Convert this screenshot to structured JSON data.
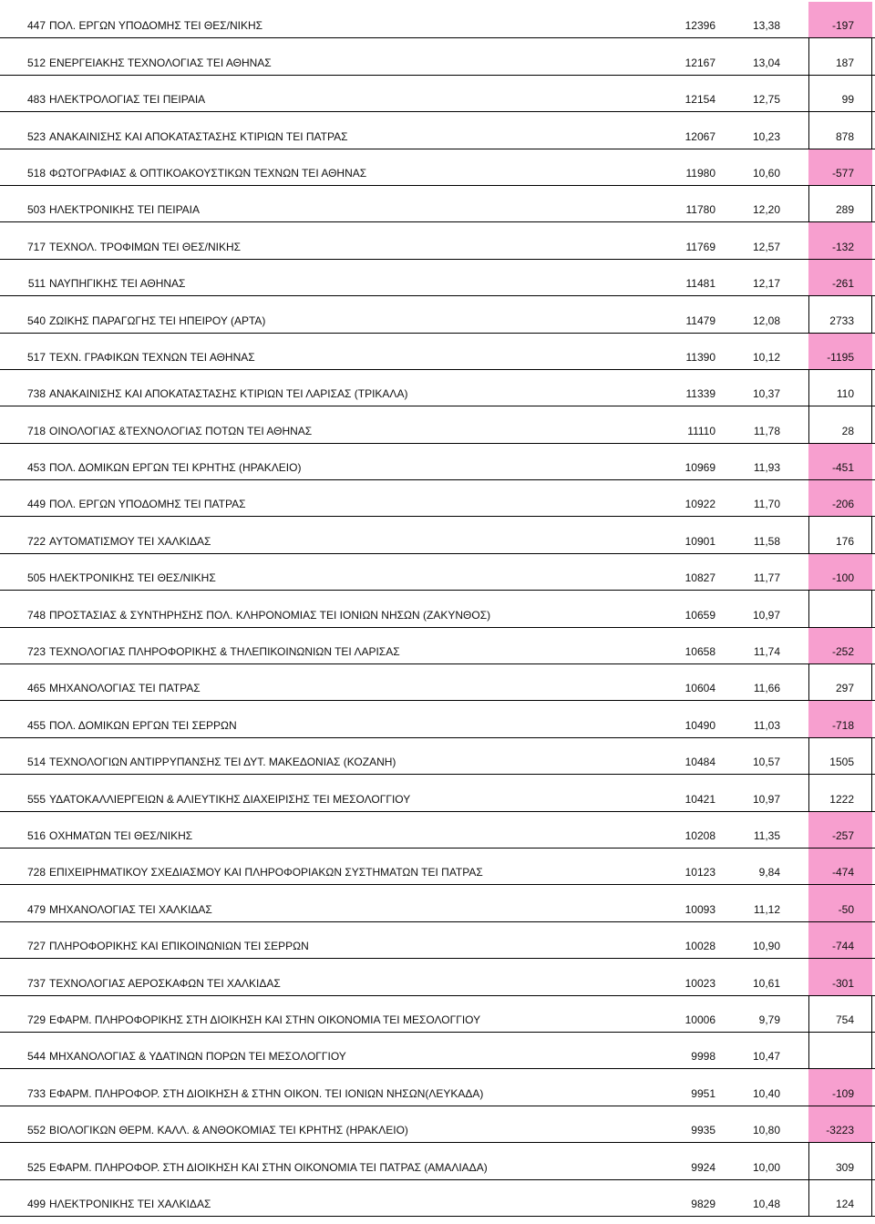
{
  "rows": [
    {
      "code": "447",
      "name": "ΠΟΛ.  ΕΡΓΩΝ ΥΠΟΔΟΜΗΣ  ΤΕΙ ΘΕΣ/ΝΙΚΗΣ",
      "score": "12396",
      "avg": "13,38",
      "diff": "-197",
      "highlight": true
    },
    {
      "code": "512",
      "name": "ΕΝΕΡΓΕΙΑΚΗΣ ΤΕΧΝΟΛΟΓΙΑΣ ΤΕΙ ΑΘΗΝΑΣ",
      "score": "12167",
      "avg": "13,04",
      "diff": "187",
      "highlight": false
    },
    {
      "code": "483",
      "name": "ΗΛΕΚΤΡΟΛΟΓΙΑΣ  ΤΕΙ ΠΕΙΡΑΙΑ",
      "score": "12154",
      "avg": "12,75",
      "diff": "99",
      "highlight": false
    },
    {
      "code": "523",
      "name": "ΑΝΑΚΑΙΝΙΣΗΣ ΚΑΙ ΑΠΟΚΑΤΑΣΤΑΣΗΣ ΚΤΙΡΙΩΝ  ΤΕΙ ΠΑΤΡΑΣ",
      "score": "12067",
      "avg": "10,23",
      "diff": "878",
      "highlight": false
    },
    {
      "code": "518",
      "name": "ΦΩΤΟΓΡΑΦΙΑΣ & ΟΠΤΙΚΟΑΚΟΥΣΤΙΚΩΝ ΤΕΧΝΩΝ  ΤΕΙ ΑΘΗΝΑΣ",
      "score": "11980",
      "avg": "10,60",
      "diff": "-577",
      "highlight": true
    },
    {
      "code": "503",
      "name": "ΗΛΕΚΤΡΟΝΙΚΗΣ  ΤΕΙ ΠΕΙΡΑΙΑ",
      "score": "11780",
      "avg": "12,20",
      "diff": "289",
      "highlight": false
    },
    {
      "code": "717",
      "name": "ΤΕΧΝΟΛ.  ΤΡΟΦΙΜΩΝ  ΤΕΙ ΘΕΣ/ΝΙΚΗΣ",
      "score": "11769",
      "avg": "12,57",
      "diff": "-132",
      "highlight": true
    },
    {
      "code": "511",
      "name": "ΝΑΥΠΗΓΙΚΗΣ  ΤΕΙ ΑΘΗΝΑΣ",
      "score": "11481",
      "avg": "12,17",
      "diff": "-261",
      "highlight": true
    },
    {
      "code": "540",
      "name": "ΖΩΙΚΗΣ ΠΑΡΑΓΩΓΗΣ ΤΕΙ ΗΠΕΙΡΟΥ (ΑΡΤΑ)",
      "score": "11479",
      "avg": "12,08",
      "diff": "2733",
      "highlight": false
    },
    {
      "code": "517",
      "name": "ΤΕΧΝ.  ΓΡΑΦΙΚΩΝ  ΤΕΧΝΩΝ  ΤΕΙ ΑΘΗΝΑΣ",
      "score": "11390",
      "avg": "10,12",
      "diff": "-1195",
      "highlight": true
    },
    {
      "code": "738",
      "name": "ΑΝΑΚΑΙΝΙΣΗΣ ΚΑΙ ΑΠΟΚΑΤΑΣΤΑΣΗΣ ΚΤΙΡΙΩΝ  ΤΕΙ ΛΑΡΙΣΑΣ (ΤΡΙΚΑΛΑ)",
      "score": "11339",
      "avg": "10,37",
      "diff": "110",
      "highlight": false
    },
    {
      "code": "718",
      "name": "ΟΙΝΟΛΟΓΙΑΣ &ΤΕΧΝΟΛΟΓΙΑΣ  ΠΟΤΩΝ  ΤΕΙ ΑΘΗΝΑΣ",
      "score": "11110",
      "avg": "11,78",
      "diff": "28",
      "highlight": false
    },
    {
      "code": "453",
      "name": "ΠΟΛ.  ΔΟΜΙΚΩΝ  ΕΡΓΩΝ  ΤΕΙ ΚΡΗΤΗΣ (ΗΡΑΚΛΕΙΟ)",
      "score": "10969",
      "avg": "11,93",
      "diff": "-451",
      "highlight": true
    },
    {
      "code": "449",
      "name": "ΠΟΛ.  ΕΡΓΩΝ  ΥΠΟΔΟΜΗΣ  ΤΕΙ ΠΑΤΡΑΣ",
      "score": "10922",
      "avg": "11,70",
      "diff": "-206",
      "highlight": true
    },
    {
      "code": "722",
      "name": "ΑΥΤΟΜΑΤΙΣΜΟΥ  ΤΕΙ ΧΑΛΚΙΔΑΣ",
      "score": "10901",
      "avg": "11,58",
      "diff": "176",
      "highlight": false
    },
    {
      "code": "505",
      "name": "ΗΛΕΚΤΡΟΝΙΚΗΣ  ΤΕΙ ΘΕΣ/ΝΙΚΗΣ",
      "score": "10827",
      "avg": "11,77",
      "diff": "-100",
      "highlight": true
    },
    {
      "code": "748",
      "name": "ΠΡΟΣΤΑΣΙΑΣ & ΣΥΝΤΗΡΗΣΗΣ ΠΟΛ. ΚΛΗΡΟΝΟΜΙΑΣ ΤΕΙ ΙΟΝΙΩΝ ΝΗΣΩΝ (ΖΑΚΥΝΘΟΣ)",
      "score": "10659",
      "avg": "10,97",
      "diff": "",
      "highlight": false
    },
    {
      "code": "723",
      "name": "ΤΕΧΝΟΛΟΓΙΑΣ ΠΛΗΡΟΦΟΡΙΚΗΣ & ΤΗΛΕΠΙΚΟΙΝΩΝΙΩΝ   ΤΕΙ ΛΑΡΙΣΑΣ",
      "score": "10658",
      "avg": "11,74",
      "diff": "-252",
      "highlight": true
    },
    {
      "code": "465",
      "name": "ΜΗΧΑΝΟΛΟΓΙΑΣ  ΤΕΙ ΠΑΤΡΑΣ",
      "score": "10604",
      "avg": "11,66",
      "diff": "297",
      "highlight": false
    },
    {
      "code": "455",
      "name": "ΠΟΛ.  ΔΟΜΙΚΩΝ  ΕΡΓΩΝ    ΤΕΙ ΣΕΡΡΩΝ",
      "score": "10490",
      "avg": "11,03",
      "diff": "-718",
      "highlight": true
    },
    {
      "code": "514",
      "name": "ΤΕΧΝΟΛΟΓΙΩΝ ΑΝΤΙΡΡΥΠΑΝΣΗΣ  ΤΕΙ ΔΥΤ. ΜΑΚΕΔΟΝΙΑΣ (ΚΟΖΑΝΗ)",
      "score": "10484",
      "avg": "10,57",
      "diff": "1505",
      "highlight": false
    },
    {
      "code": "555",
      "name": "ΥΔΑΤΟΚΑΛΛΙΕΡΓΕΙΩΝ & ΑΛΙΕΥΤΙΚΗΣ ΔΙΑΧΕΙΡΙΣΗΣ ΤΕΙ ΜΕΣΟΛΟΓΓΙΟΥ",
      "score": "10421",
      "avg": "10,97",
      "diff": "1222",
      "highlight": false
    },
    {
      "code": "516",
      "name": "ΟΧΗΜΑΤΩΝ  ΤΕΙ ΘΕΣ/ΝΙΚΗΣ",
      "score": "10208",
      "avg": "11,35",
      "diff": "-257",
      "highlight": true
    },
    {
      "code": "728",
      "name": "ΕΠΙΧΕΙΡΗΜΑΤΙΚΟΥ ΣΧΕΔΙΑΣΜΟΥ ΚΑΙ ΠΛΗΡΟΦΟΡΙΑΚΩΝ ΣΥΣΤΗΜΑΤΩΝ  ΤΕΙ ΠΑΤΡΑΣ",
      "score": "10123",
      "avg": "9,84",
      "diff": "-474",
      "highlight": true
    },
    {
      "code": "479",
      "name": "ΜΗΧΑΝΟΛΟΓΙΑΣ  ΤΕΙ ΧΑΛΚΙΔΑΣ",
      "score": "10093",
      "avg": "11,12",
      "diff": "-50",
      "highlight": true
    },
    {
      "code": "727",
      "name": "ΠΛΗΡΟΦΟΡΙΚΗΣ ΚΑΙ ΕΠΙΚΟΙΝΩΝΙΩΝ  ΤΕΙ ΣΕΡΡΩΝ",
      "score": "10028",
      "avg": "10,90",
      "diff": "-744",
      "highlight": true
    },
    {
      "code": "737",
      "name": "ΤΕΧΝΟΛΟΓΙΑΣ ΑΕΡΟΣΚΑΦΩΝ ΤΕΙ ΧΑΛΚΙΔΑΣ",
      "score": "10023",
      "avg": "10,61",
      "diff": "-301",
      "highlight": true
    },
    {
      "code": "729",
      "name": "ΕΦΑΡΜ. ΠΛΗΡΟΦΟΡΙΚΗΣ ΣΤΗ ΔΙΟΙΚΗΣΗ ΚΑΙ ΣΤΗΝ ΟΙΚΟΝΟΜΙΑ ΤΕΙ ΜΕΣΟΛΟΓΓΙΟΥ",
      "score": "10006",
      "avg": "9,79",
      "diff": "754",
      "highlight": false
    },
    {
      "code": "544",
      "name": "ΜΗΧΑΝΟΛΟΓΙΑΣ & ΥΔΑΤΙΝΩΝ ΠΟΡΩΝ ΤΕΙ ΜΕΣΟΛΟΓΓΙΟΥ",
      "score": "9998",
      "avg": "10,47",
      "diff": "",
      "highlight": false
    },
    {
      "code": "733",
      "name": "ΕΦΑΡΜ. ΠΛΗΡΟΦΟΡ. ΣΤΗ ΔΙΟΙΚΗΣΗ & ΣΤΗΝ ΟΙΚΟΝ. ΤΕΙ ΙΟΝΙΩΝ ΝΗΣΩΝ(ΛΕΥΚΑΔΑ)",
      "score": "9951",
      "avg": "10,40",
      "diff": "-109",
      "highlight": true
    },
    {
      "code": "552",
      "name": "ΒΙΟΛΟΓΙΚΩΝ ΘΕΡΜ. ΚΑΛΛ. &  ΑΝΘΟΚΟΜΙΑΣ ΤΕΙ ΚΡΗΤΗΣ (ΗΡΑΚΛΕΙΟ)",
      "score": "9935",
      "avg": "10,80",
      "diff": "-3223",
      "highlight": true
    },
    {
      "code": "525",
      "name": "ΕΦΑΡΜ. ΠΛΗΡΟΦΟΡ. ΣΤΗ ΔΙΟΙΚΗΣΗ ΚΑΙ ΣΤΗΝ ΟΙΚΟΝΟΜΙΑ ΤΕΙ ΠΑΤΡΑΣ (ΑΜΑΛΙΑΔΑ)",
      "score": "9924",
      "avg": "10,00",
      "diff": "309",
      "highlight": false
    },
    {
      "code": "499",
      "name": "ΗΛΕΚΤΡΟΝΙΚΗΣ  ΤΕΙ ΧΑΛΚΙΔΑΣ",
      "score": "9829",
      "avg": "10,48",
      "diff": "124",
      "highlight": false
    }
  ],
  "colors": {
    "highlight": "#f79fcf",
    "grid": "#000000"
  }
}
